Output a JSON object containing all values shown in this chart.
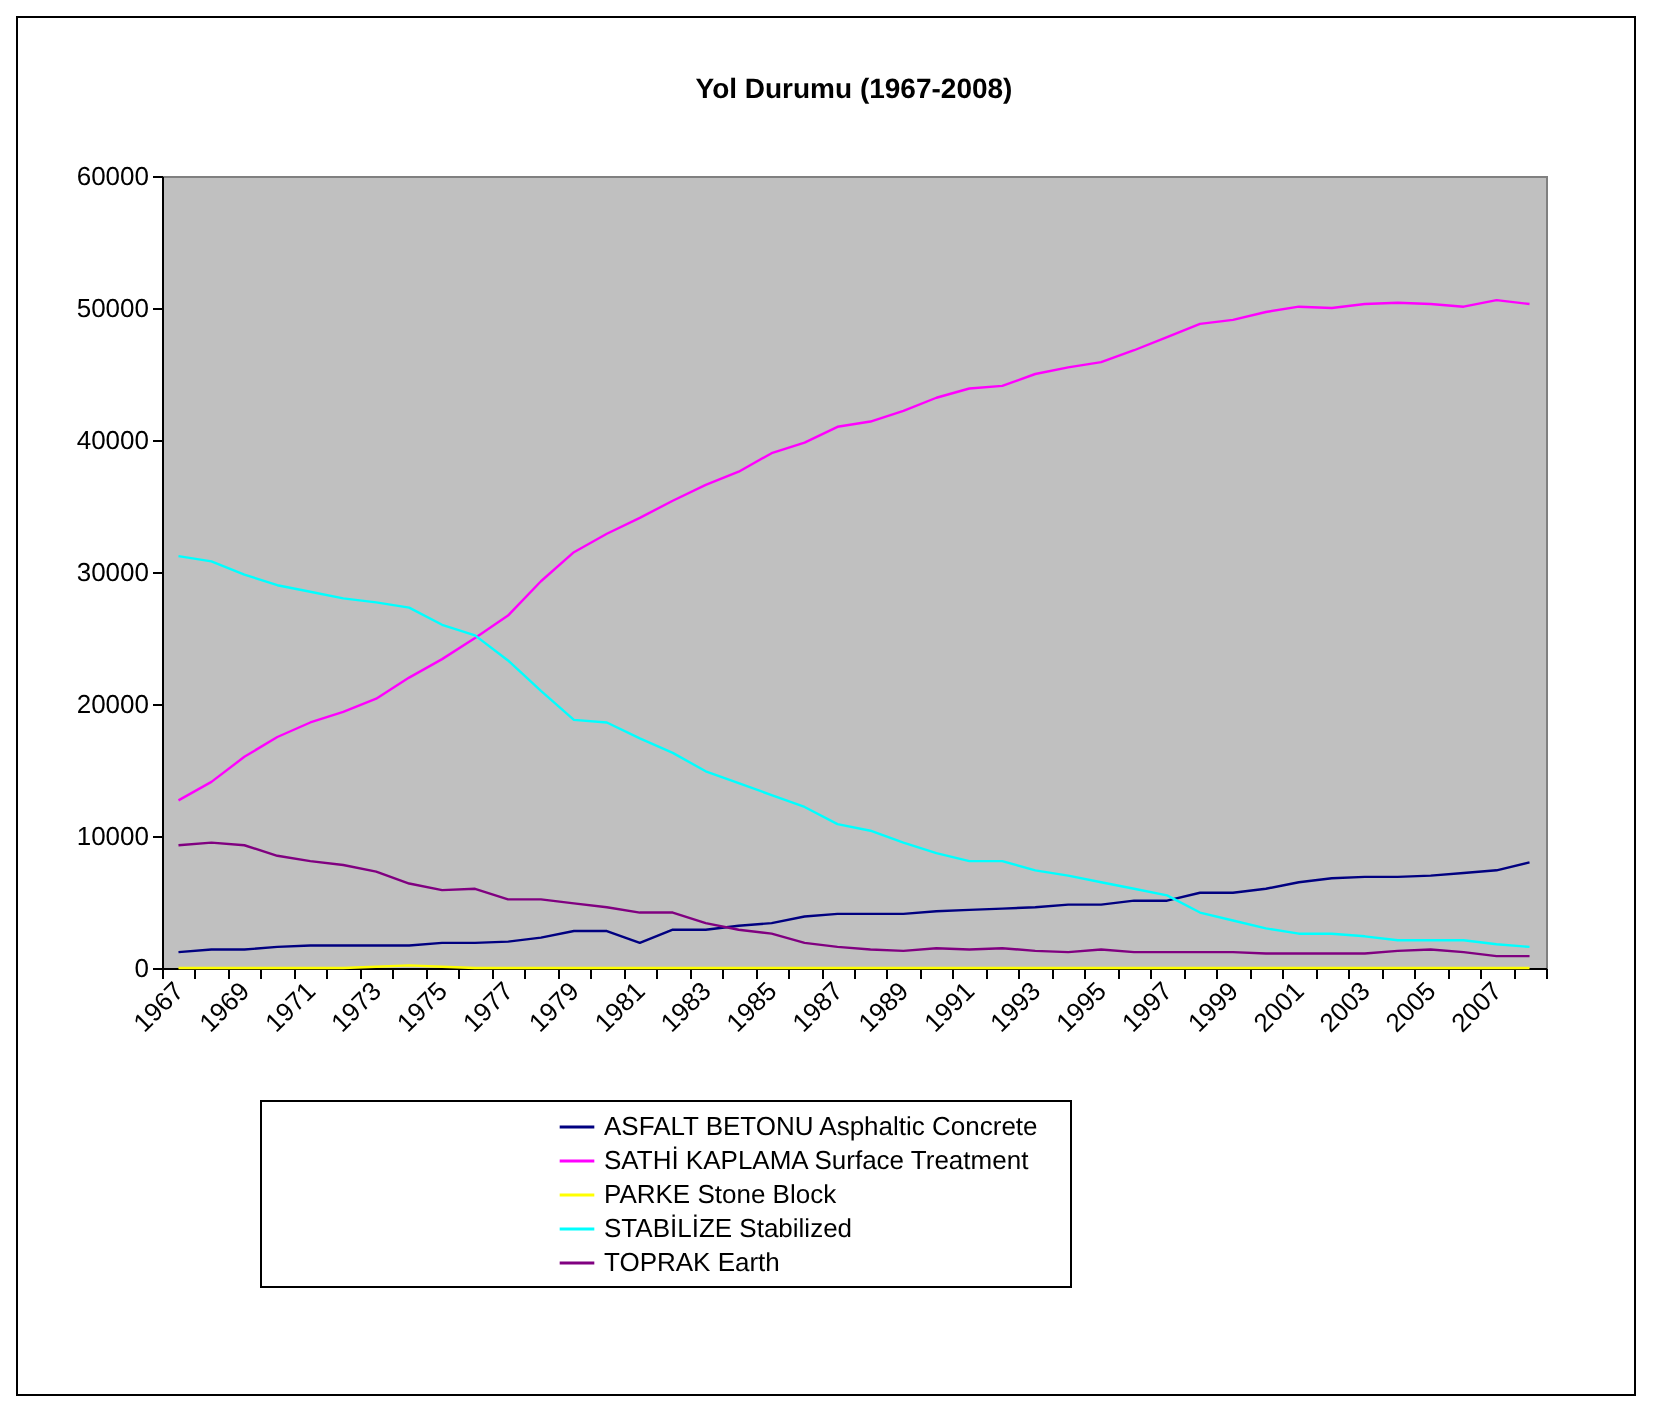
{
  "chart_data": {
    "type": "line",
    "title": "Yol Durumu (1967-2008)",
    "categories": [
      "1967",
      null,
      "1969",
      null,
      "1971",
      null,
      "1973",
      null,
      "1975",
      null,
      "1977",
      null,
      "1979",
      null,
      "1981",
      null,
      "1983",
      null,
      "1985",
      null,
      "1987",
      null,
      "1989",
      null,
      "1991",
      null,
      "1993",
      null,
      "1995",
      null,
      "1997",
      null,
      "1999",
      null,
      "2001",
      null,
      "2003",
      null,
      "2005",
      null,
      "2007",
      null
    ],
    "series": [
      {
        "name": "ASFALT BETONU    Asphaltic Concrete",
        "color": "#000080",
        "values": [
          1200,
          1400,
          1400,
          1600,
          1700,
          1700,
          1700,
          1700,
          1900,
          1900,
          2000,
          2300,
          2800,
          2800,
          1900,
          2900,
          2900,
          3200,
          3400,
          3900,
          4100,
          4100,
          4100,
          4300,
          4400,
          4500,
          4600,
          4800,
          4800,
          5100,
          5100,
          5700,
          5700,
          6000,
          6500,
          6800,
          6900,
          6900,
          7000,
          7200,
          7400,
          8000
        ]
      },
      {
        "name": "SATHİ KAPLAMA     Surface Treatment",
        "color": "#ff00ff",
        "values": [
          12700,
          14100,
          16000,
          17500,
          18600,
          19400,
          20400,
          22000,
          23400,
          25000,
          26700,
          29300,
          31500,
          32900,
          34100,
          35400,
          36600,
          37600,
          39000,
          39800,
          41000,
          41400,
          42200,
          43200,
          43900,
          44100,
          45000,
          45500,
          45900,
          46800,
          47800,
          48800,
          49100,
          49700,
          50100,
          50000,
          50300,
          50400,
          50300,
          50100,
          50600,
          50300
        ]
      },
      {
        "name": "PARKE     Stone Block",
        "color": "#ffff00",
        "values": [
          0,
          0,
          0,
          0,
          0,
          0,
          100,
          200,
          100,
          0,
          0,
          0,
          0,
          0,
          0,
          0,
          0,
          0,
          0,
          0,
          0,
          0,
          0,
          0,
          0,
          0,
          0,
          0,
          0,
          0,
          0,
          0,
          0,
          0,
          0,
          0,
          0,
          0,
          0,
          0,
          0,
          0
        ]
      },
      {
        "name": "STABİLİZE     Stabilized",
        "color": "#00ffff",
        "values": [
          31200,
          30800,
          29800,
          29000,
          28500,
          28000,
          27700,
          27300,
          26000,
          25200,
          23300,
          21000,
          18800,
          18600,
          17400,
          16300,
          14900,
          14000,
          13100,
          12200,
          10900,
          10400,
          9500,
          8700,
          8100,
          8100,
          7400,
          7000,
          6500,
          6000,
          5500,
          4200,
          3600,
          3000,
          2600,
          2600,
          2400,
          2100,
          2100,
          2100,
          1800,
          1600
        ]
      },
      {
        "name": "TOPRAK     Earth",
        "color": "#800080",
        "values": [
          9300,
          9500,
          9300,
          8500,
          8100,
          7800,
          7300,
          6400,
          5900,
          6000,
          5200,
          5200,
          4900,
          4600,
          4200,
          4200,
          3400,
          2900,
          2600,
          1900,
          1600,
          1400,
          1300,
          1500,
          1400,
          1500,
          1300,
          1200,
          1400,
          1200,
          1200,
          1200,
          1200,
          1100,
          1100,
          1100,
          1100,
          1300,
          1400,
          1200,
          900,
          900
        ]
      }
    ],
    "ylim": [
      0,
      60000
    ],
    "yticks": [
      0,
      10000,
      20000,
      30000,
      40000,
      50000,
      60000
    ],
    "grid": false,
    "legend": "bottom"
  }
}
